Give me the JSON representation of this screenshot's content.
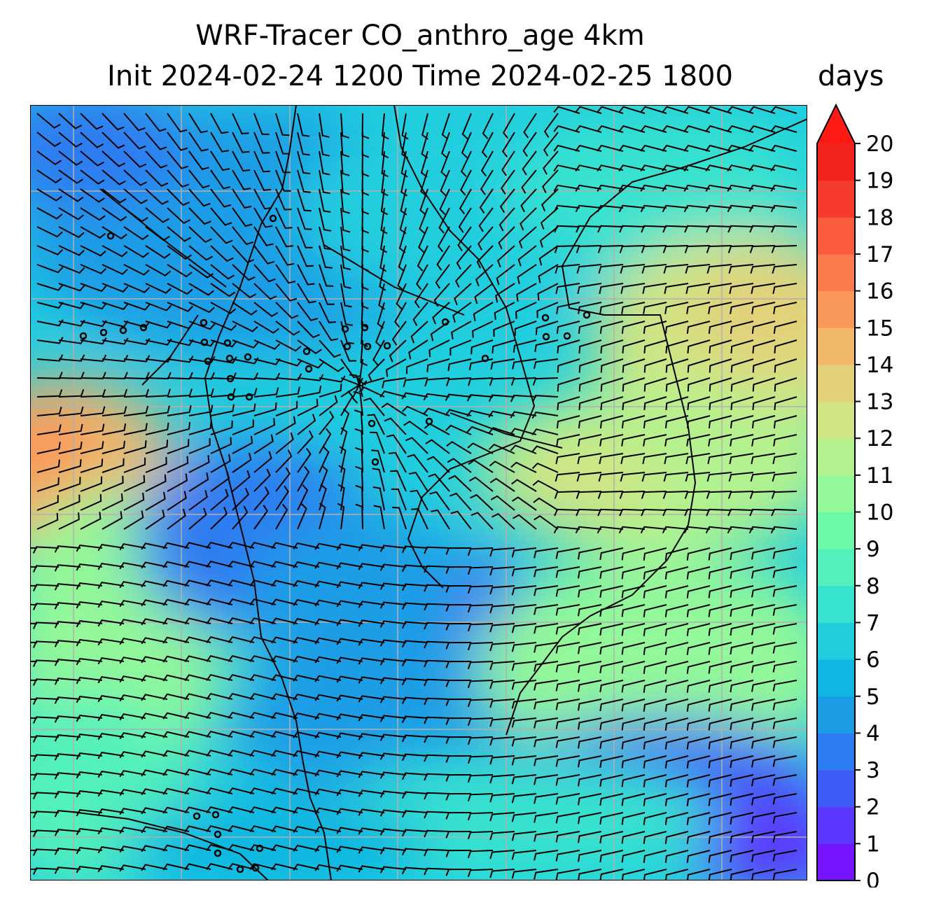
{
  "figure": {
    "title_line1": "WRF-Tracer CO_anthro_age 4km",
    "title_line2": "Init 2024-02-24 1200 Time 2024-02-25 1800",
    "units": "days"
  },
  "colorbar": {
    "min": 0,
    "max": 20,
    "step": 1,
    "extend": "max",
    "tick_labels": [
      "0",
      "1",
      "2",
      "3",
      "4",
      "5",
      "6",
      "7",
      "8",
      "9",
      "10",
      "11",
      "12",
      "13",
      "14",
      "15",
      "16",
      "17",
      "18",
      "19",
      "20"
    ],
    "colors": [
      "#7515ff",
      "#5b37ff",
      "#3f5bf7",
      "#2e7cf1",
      "#1b9de6",
      "#0fb6e1",
      "#20cede",
      "#37e2cf",
      "#52f1bb",
      "#6df7a8",
      "#93f899",
      "#b4f28f",
      "#cfe584",
      "#e2d17a",
      "#f1b86a",
      "#fa985b",
      "#fc7a4c",
      "#fa5b3d",
      "#f63a2c",
      "#f2221c"
    ],
    "extend_color": "#ff1a13"
  },
  "map": {
    "grid": true,
    "grid_color": "#b0b0b0",
    "coastline_color": "#000000",
    "wind_barbs": true
  }
}
